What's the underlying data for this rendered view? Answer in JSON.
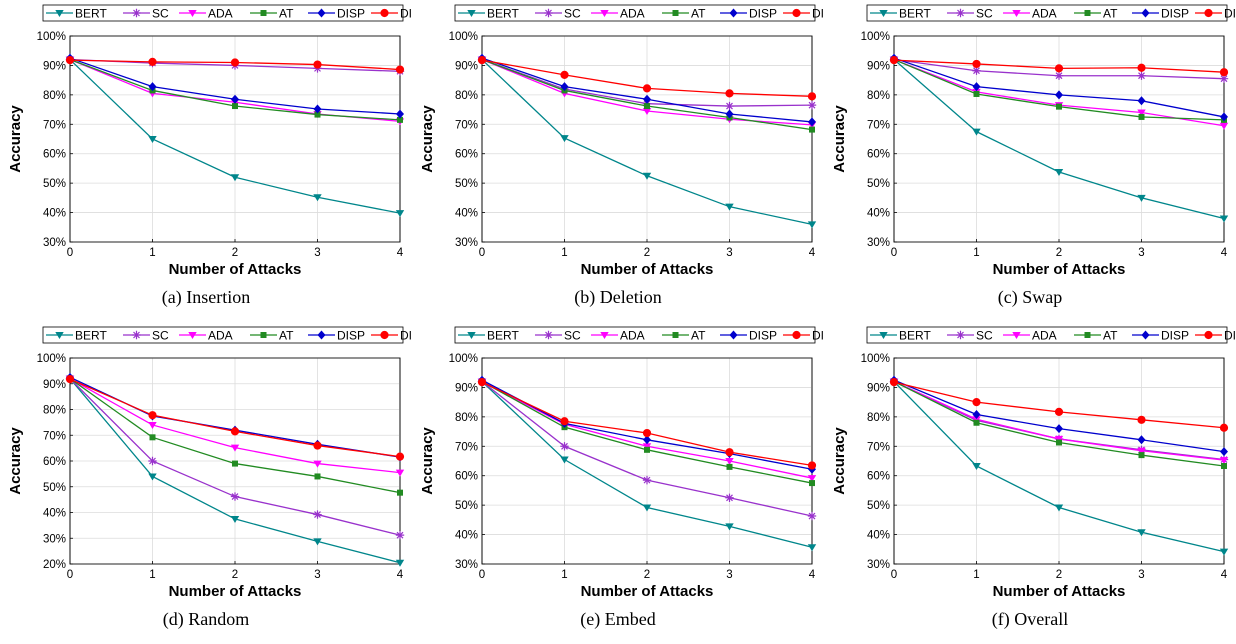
{
  "figure": {
    "colors": {
      "BERT": "#00868b",
      "SC": "#9932cc",
      "ADA": "#ff00ff",
      "AT": "#228b22",
      "DISP": "#0000cd",
      "DISP+SC": "#ff0000"
    }
  },
  "chart_data": [
    {
      "type": "line",
      "caption": "(a) Insertion",
      "xlabel": "Number of Attacks",
      "ylabel": "Accuracy",
      "x": [
        0,
        1,
        2,
        3,
        4
      ],
      "xticks": [
        "0",
        "1",
        "2",
        "3",
        "4"
      ],
      "ylim": [
        30,
        100
      ],
      "yticks": [
        "30%",
        "40%",
        "50%",
        "60%",
        "70%",
        "80%",
        "90%",
        "100%"
      ],
      "grid": true,
      "legend": "top",
      "series": [
        {
          "name": "BERT",
          "marker": "triangle-down",
          "values": [
            92,
            65,
            52,
            45.2,
            39.8
          ]
        },
        {
          "name": "SC",
          "marker": "asterisk",
          "values": [
            92,
            90.8,
            90,
            89,
            88
          ]
        },
        {
          "name": "ADA",
          "marker": "triangle-down",
          "values": [
            92,
            80.5,
            77.5,
            73.5,
            71
          ]
        },
        {
          "name": "AT",
          "marker": "square",
          "values": [
            92,
            81.5,
            76.2,
            73.3,
            71.5
          ]
        },
        {
          "name": "DISP",
          "marker": "diamond",
          "values": [
            92.5,
            82.8,
            78.5,
            75.2,
            73.5
          ]
        },
        {
          "name": "DISP+SC",
          "marker": "circle",
          "values": [
            91.8,
            91.2,
            91,
            90.3,
            88.6
          ]
        }
      ]
    },
    {
      "type": "line",
      "caption": "(b) Deletion",
      "xlabel": "Number of Attacks",
      "ylabel": "Accuracy",
      "x": [
        0,
        1,
        2,
        3,
        4
      ],
      "xticks": [
        "0",
        "1",
        "2",
        "3",
        "4"
      ],
      "ylim": [
        30,
        100
      ],
      "yticks": [
        "30%",
        "40%",
        "50%",
        "60%",
        "70%",
        "80%",
        "90%",
        "100%"
      ],
      "grid": true,
      "legend": "top",
      "series": [
        {
          "name": "BERT",
          "marker": "triangle-down",
          "values": [
            92,
            65.3,
            52.5,
            42,
            36
          ]
        },
        {
          "name": "SC",
          "marker": "asterisk",
          "values": [
            92,
            82,
            77,
            76.2,
            76.5
          ]
        },
        {
          "name": "ADA",
          "marker": "triangle-down",
          "values": [
            92,
            80.5,
            74.5,
            71.7,
            69.8
          ]
        },
        {
          "name": "AT",
          "marker": "square",
          "values": [
            92,
            81.5,
            76.2,
            72.3,
            68.2
          ]
        },
        {
          "name": "DISP",
          "marker": "diamond",
          "values": [
            92.5,
            82.8,
            78.5,
            73.5,
            70.8
          ]
        },
        {
          "name": "DISP+SC",
          "marker": "circle",
          "values": [
            91.8,
            86.8,
            82.2,
            80.5,
            79.5
          ]
        }
      ]
    },
    {
      "type": "line",
      "caption": "(c) Swap",
      "xlabel": "Number of Attacks",
      "ylabel": "Accuracy",
      "x": [
        0,
        1,
        2,
        3,
        4
      ],
      "xticks": [
        "0",
        "1",
        "2",
        "3",
        "4"
      ],
      "ylim": [
        30,
        100
      ],
      "yticks": [
        "30%",
        "40%",
        "50%",
        "60%",
        "70%",
        "80%",
        "90%",
        "100%"
      ],
      "grid": true,
      "legend": "top",
      "series": [
        {
          "name": "BERT",
          "marker": "triangle-down",
          "values": [
            92,
            67.5,
            53.8,
            45,
            38
          ]
        },
        {
          "name": "SC",
          "marker": "asterisk",
          "values": [
            92,
            88.2,
            86.5,
            86.5,
            85.5
          ]
        },
        {
          "name": "ADA",
          "marker": "triangle-down",
          "values": [
            92,
            81,
            76.5,
            74,
            69.5
          ]
        },
        {
          "name": "AT",
          "marker": "square",
          "values": [
            92,
            80.3,
            76,
            72.5,
            71.5
          ]
        },
        {
          "name": "DISP",
          "marker": "diamond",
          "values": [
            92.5,
            82.8,
            80,
            78,
            72.5
          ]
        },
        {
          "name": "DISP+SC",
          "marker": "circle",
          "values": [
            91.8,
            90.5,
            89,
            89.2,
            87.7
          ]
        }
      ]
    },
    {
      "type": "line",
      "caption": "(d) Random",
      "xlabel": "Number of Attacks",
      "ylabel": "Accuracy",
      "x": [
        0,
        1,
        2,
        3,
        4
      ],
      "xticks": [
        "0",
        "1",
        "2",
        "3",
        "4"
      ],
      "ylim": [
        20,
        100
      ],
      "yticks": [
        "20%",
        "30%",
        "40%",
        "50%",
        "60%",
        "70%",
        "80%",
        "90%",
        "100%"
      ],
      "grid": true,
      "legend": "top",
      "series": [
        {
          "name": "BERT",
          "marker": "triangle-down",
          "values": [
            92,
            54,
            37.5,
            28.8,
            20.5
          ]
        },
        {
          "name": "SC",
          "marker": "asterisk",
          "values": [
            92,
            60,
            46.2,
            39.2,
            31.2
          ]
        },
        {
          "name": "ADA",
          "marker": "triangle-down",
          "values": [
            92,
            74,
            65.2,
            59,
            55.5
          ]
        },
        {
          "name": "AT",
          "marker": "square",
          "values": [
            92,
            69.2,
            59,
            54,
            47.7
          ]
        },
        {
          "name": "DISP",
          "marker": "diamond",
          "values": [
            92.5,
            77.5,
            72,
            66.5,
            61.5
          ]
        },
        {
          "name": "DISP+SC",
          "marker": "circle",
          "values": [
            91.8,
            77.8,
            71.5,
            66,
            61.7
          ]
        }
      ]
    },
    {
      "type": "line",
      "caption": "(e) Embed",
      "xlabel": "Number of Attacks",
      "ylabel": "Accuracy",
      "x": [
        0,
        1,
        2,
        3,
        4
      ],
      "xticks": [
        "0",
        "1",
        "2",
        "3",
        "4"
      ],
      "ylim": [
        30,
        100
      ],
      "yticks": [
        "30%",
        "40%",
        "50%",
        "60%",
        "70%",
        "80%",
        "90%",
        "100%"
      ],
      "grid": true,
      "legend": "top",
      "series": [
        {
          "name": "BERT",
          "marker": "triangle-down",
          "values": [
            92,
            65.5,
            49.2,
            42.8,
            35.7
          ]
        },
        {
          "name": "SC",
          "marker": "asterisk",
          "values": [
            92,
            70,
            58.5,
            52.5,
            46.3
          ]
        },
        {
          "name": "ADA",
          "marker": "triangle-down",
          "values": [
            92,
            77.5,
            70,
            65,
            59.2
          ]
        },
        {
          "name": "AT",
          "marker": "square",
          "values": [
            92,
            76.5,
            68.8,
            63,
            57.5
          ]
        },
        {
          "name": "DISP",
          "marker": "diamond",
          "values": [
            92.5,
            77.8,
            72.2,
            67.5,
            62.2
          ]
        },
        {
          "name": "DISP+SC",
          "marker": "circle",
          "values": [
            91.8,
            78.5,
            74.5,
            68,
            63.5
          ]
        }
      ]
    },
    {
      "type": "line",
      "caption": "(f) Overall",
      "xlabel": "Number of Attacks",
      "ylabel": "Accuracy",
      "x": [
        0,
        1,
        2,
        3,
        4
      ],
      "xticks": [
        "0",
        "1",
        "2",
        "3",
        "4"
      ],
      "ylim": [
        30,
        100
      ],
      "yticks": [
        "30%",
        "40%",
        "50%",
        "60%",
        "70%",
        "80%",
        "90%",
        "100%"
      ],
      "grid": true,
      "legend": "top",
      "series": [
        {
          "name": "BERT",
          "marker": "triangle-down",
          "values": [
            92,
            63.3,
            49.2,
            40.8,
            34.2
          ]
        },
        {
          "name": "SC",
          "marker": "asterisk",
          "values": [
            92,
            78.8,
            72.5,
            68.8,
            65.5
          ]
        },
        {
          "name": "ADA",
          "marker": "triangle-down",
          "values": [
            92,
            79.2,
            72.5,
            68.5,
            65.3
          ]
        },
        {
          "name": "AT",
          "marker": "square",
          "values": [
            92,
            78,
            71.3,
            67,
            63.3
          ]
        },
        {
          "name": "DISP",
          "marker": "diamond",
          "values": [
            92.5,
            80.8,
            76,
            72.2,
            68.2
          ]
        },
        {
          "name": "DISP+SC",
          "marker": "circle",
          "values": [
            91.8,
            85,
            81.7,
            79,
            76.3
          ]
        }
      ]
    }
  ]
}
